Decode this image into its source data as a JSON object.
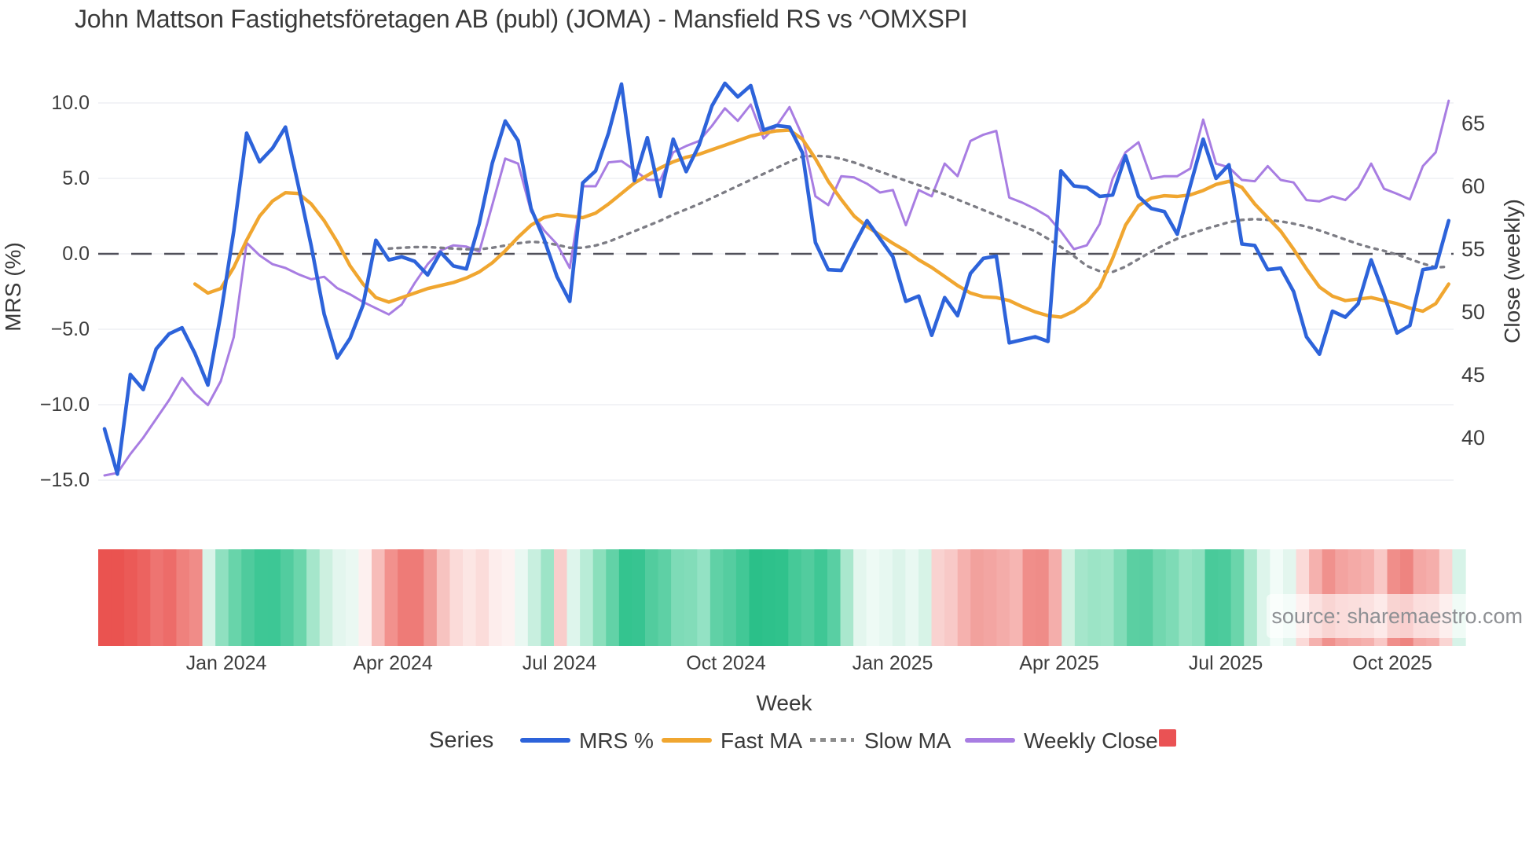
{
  "title": "John Mattson Fastighetsföretagen AB (publ) (JOMA) - Mansfield RS vs ^OMXSPI",
  "watermark": "source: sharemaestro.com",
  "colors": {
    "mrs_blue": "#2d63da",
    "fast_ma_orange": "#f0a630",
    "slow_ma_gray": "#7d7d85",
    "weekly_close_purple": "#a87de2",
    "legend_square_red": "#ea5254",
    "zero_line": "#50505a",
    "gridline": "#edeff4"
  },
  "axes": {
    "left": {
      "title": "MRS (%)",
      "ticks": [
        "10.0",
        "5.0",
        "0.0",
        "−5.0",
        "−10.0",
        "−15.0"
      ]
    },
    "right": {
      "title": "Close (weekly)",
      "ticks": [
        "65",
        "60",
        "55",
        "50",
        "45",
        "40"
      ]
    },
    "x": {
      "title": "Week",
      "ticks": [
        "Jan 2024",
        "Apr 2024",
        "Jul 2024",
        "Oct 2024",
        "Jan 2025",
        "Apr 2025",
        "Jul 2025",
        "Oct 2025"
      ]
    }
  },
  "legend": {
    "title": "Series",
    "items": [
      {
        "label": "MRS %",
        "color": "#2d63da",
        "style": "solid"
      },
      {
        "label": "Fast MA",
        "color": "#f0a630",
        "style": "solid"
      },
      {
        "label": "Slow MA",
        "color": "#8c8c8c",
        "style": "dotted"
      },
      {
        "label": "Weekly Close",
        "color": "#a87de2",
        "style": "solid"
      },
      {
        "label": "",
        "color": "#ea5254",
        "style": "square"
      }
    ]
  },
  "chart_data": {
    "type": "line",
    "title": "John Mattson Fastighetsföretagen AB (publ) (JOMA) - Mansfield RS vs ^OMXSPI",
    "xlabel": "Week",
    "x_tick_labels": [
      "Jan 2024",
      "Apr 2024",
      "Jul 2024",
      "Oct 2024",
      "Jan 2025",
      "Apr 2025",
      "Jul 2025",
      "Oct 2025"
    ],
    "n_weeks": 105,
    "grid": true,
    "legend_position": "bottom",
    "left_axis": {
      "title": "MRS (%)",
      "ylim": [
        -15,
        10
      ],
      "tick_values": [
        10,
        5,
        0,
        -5,
        -10,
        -15
      ],
      "zero_dashed_line": true
    },
    "right_axis": {
      "title": "Close (weekly)",
      "ylim": [
        40,
        65
      ],
      "tick_values": [
        65,
        60,
        55,
        50,
        45,
        40
      ]
    },
    "series": [
      {
        "name": "Weekly Close",
        "axis": "right",
        "color": "#a87de2",
        "width": 3,
        "dash": null,
        "values": [
          37.0,
          37.2,
          38.7,
          40.0,
          41.5,
          43.0,
          44.75,
          43.5,
          42.6,
          44.5,
          48.0,
          55.5,
          54.5,
          53.8,
          53.5,
          53.0,
          52.6,
          52.8,
          51.9,
          51.4,
          50.8,
          50.3,
          49.8,
          50.6,
          52.3,
          53.8,
          54.9,
          55.3,
          55.2,
          54.8,
          58.5,
          62.2,
          61.8,
          58.0,
          56.5,
          55.4,
          53.5,
          60.0,
          60.0,
          61.9,
          62.0,
          61.3,
          60.5,
          60.5,
          62.7,
          63.2,
          63.6,
          64.8,
          66.2,
          65.2,
          66.5,
          63.8,
          64.8,
          66.3,
          64.0,
          59.2,
          58.5,
          60.8,
          60.7,
          60.2,
          59.5,
          59.7,
          56.9,
          59.7,
          59.2,
          61.8,
          60.8,
          63.6,
          64.1,
          64.4,
          59.1,
          58.7,
          58.2,
          57.6,
          56.4,
          55.0,
          55.3,
          57.0,
          60.6,
          62.7,
          63.5,
          60.6,
          60.8,
          60.8,
          61.4,
          65.3,
          61.8,
          61.5,
          60.5,
          60.4,
          61.6,
          60.5,
          60.3,
          58.9,
          58.8,
          59.2,
          58.9,
          59.9,
          61.8,
          59.8,
          59.4,
          58.95,
          61.6,
          62.7,
          66.8
        ]
      },
      {
        "name": "Slow MA",
        "axis": "left",
        "color": "#7d7d85",
        "width": 3.4,
        "dash": "4 7",
        "values": [
          null,
          null,
          null,
          null,
          null,
          null,
          null,
          null,
          null,
          null,
          null,
          null,
          null,
          null,
          null,
          null,
          null,
          null,
          null,
          null,
          null,
          null,
          0.35,
          0.4,
          0.45,
          0.45,
          0.4,
          0.35,
          0.3,
          0.3,
          0.4,
          0.55,
          0.7,
          0.8,
          0.75,
          0.6,
          0.4,
          0.4,
          0.55,
          0.8,
          1.15,
          1.5,
          1.85,
          2.2,
          2.6,
          2.95,
          3.3,
          3.7,
          4.1,
          4.5,
          4.9,
          5.3,
          5.7,
          6.1,
          6.45,
          6.5,
          6.45,
          6.3,
          6.05,
          5.75,
          5.45,
          5.15,
          4.85,
          4.55,
          4.25,
          3.95,
          3.6,
          3.25,
          2.9,
          2.55,
          2.2,
          1.85,
          1.5,
          1.0,
          0.45,
          -0.15,
          -0.8,
          -1.15,
          -1.2,
          -0.85,
          -0.35,
          0.15,
          0.6,
          1.0,
          1.3,
          1.6,
          1.85,
          2.1,
          2.25,
          2.3,
          2.25,
          2.15,
          2.0,
          1.8,
          1.55,
          1.25,
          0.95,
          0.65,
          0.4,
          0.2,
          -0.05,
          -0.35,
          -0.65,
          -0.9,
          -0.85
        ]
      },
      {
        "name": "Fast MA",
        "axis": "left",
        "color": "#f0a630",
        "width": 4.4,
        "dash": null,
        "values": [
          null,
          null,
          null,
          null,
          null,
          null,
          null,
          -2.0,
          -2.6,
          -2.3,
          -0.9,
          0.9,
          2.5,
          3.5,
          4.05,
          4.0,
          3.3,
          2.2,
          0.8,
          -0.8,
          -2.0,
          -2.9,
          -3.2,
          -2.9,
          -2.6,
          -2.3,
          -2.1,
          -1.9,
          -1.6,
          -1.2,
          -0.6,
          0.2,
          1.1,
          1.9,
          2.4,
          2.6,
          2.5,
          2.4,
          2.7,
          3.3,
          4.0,
          4.7,
          5.2,
          5.7,
          6.1,
          6.4,
          6.6,
          6.9,
          7.2,
          7.5,
          7.8,
          8.0,
          8.15,
          8.2,
          7.6,
          6.3,
          4.8,
          3.6,
          2.5,
          1.8,
          1.25,
          0.7,
          0.2,
          -0.4,
          -0.9,
          -1.5,
          -2.1,
          -2.6,
          -2.85,
          -2.9,
          -3.1,
          -3.5,
          -3.85,
          -4.1,
          -4.2,
          -3.8,
          -3.2,
          -2.2,
          -0.3,
          1.9,
          3.2,
          3.7,
          3.85,
          3.8,
          3.9,
          4.2,
          4.6,
          4.8,
          4.4,
          3.3,
          2.4,
          1.5,
          0.3,
          -1.0,
          -2.2,
          -2.8,
          -3.1,
          -3.0,
          -2.9,
          -3.1,
          -3.3,
          -3.6,
          -3.8,
          -3.3,
          -2.0
        ]
      },
      {
        "name": "MRS %",
        "axis": "left",
        "color": "#2d63da",
        "width": 4.6,
        "dash": null,
        "values": [
          -11.6,
          -14.6,
          -8.0,
          -9.0,
          -6.3,
          -5.3,
          -4.9,
          -6.6,
          -8.7,
          -4.0,
          1.5,
          8.0,
          6.1,
          7.0,
          8.4,
          4.5,
          0.5,
          -4.0,
          -6.9,
          -5.6,
          -3.4,
          0.9,
          -0.4,
          -0.2,
          -0.5,
          -1.4,
          0.1,
          -0.8,
          -1.0,
          2.0,
          6.0,
          8.8,
          7.5,
          3.0,
          1.0,
          -1.5,
          -3.15,
          4.7,
          5.5,
          8.0,
          11.25,
          4.85,
          7.7,
          3.8,
          7.6,
          5.45,
          7.2,
          9.8,
          11.3,
          10.4,
          11.15,
          8.2,
          8.5,
          8.4,
          6.7,
          0.75,
          -1.05,
          -1.1,
          0.6,
          2.2,
          1.0,
          -0.2,
          -3.15,
          -2.8,
          -5.4,
          -2.9,
          -4.1,
          -1.3,
          -0.3,
          -0.15,
          -5.9,
          -5.7,
          -5.5,
          -5.8,
          5.5,
          4.5,
          4.4,
          3.8,
          3.9,
          6.5,
          3.8,
          3.0,
          2.8,
          1.3,
          4.5,
          7.6,
          5.0,
          5.9,
          0.65,
          0.55,
          -1.05,
          -0.95,
          -2.5,
          -5.5,
          -6.65,
          -3.8,
          -4.2,
          -3.3,
          -0.4,
          -2.7,
          -5.25,
          -4.75,
          -1.05,
          -0.9,
          2.2
        ]
      }
    ],
    "heat_strip": {
      "colors": [
        "#ea5350",
        "#ea5350",
        "#eb5a57",
        "#ec6360",
        "#ee7471",
        "#ed6c69",
        "#ef817d",
        "#f08c88",
        "#d8f3e8",
        "#8fe0c0",
        "#68d4aa",
        "#4fcb9d",
        "#3ec795",
        "#3dc795",
        "#52cc9f",
        "#6bd5ab",
        "#a5e6cb",
        "#cdf0e0",
        "#e3f6ee",
        "#eaf8f2",
        "#fdf0ef",
        "#f7bcb9",
        "#f2918d",
        "#ee7b77",
        "#ee7b77",
        "#f19a96",
        "#f7c3c0",
        "#fbdbd9",
        "#fce6e4",
        "#fbdcda",
        "#fdedec",
        "#fdf2f1",
        "#eaf8f2",
        "#c8efdf",
        "#9de4c7",
        "#f9cdcb",
        "#def5ec",
        "#b9ecd7",
        "#8bdfbc",
        "#62d2a7",
        "#34c48f",
        "#37c491",
        "#52cc9e",
        "#5ed0a5",
        "#7edbb7",
        "#82dcb9",
        "#93e2c4",
        "#60d1a6",
        "#55cda0",
        "#42c896",
        "#2bc089",
        "#2ec18b",
        "#30c28c",
        "#46c998",
        "#52cc9e",
        "#3fc795",
        "#59cfa3",
        "#a9e7cd",
        "#e3f6ee",
        "#eefaf5",
        "#e7f8f1",
        "#dcf4ea",
        "#e9f8f2",
        "#d7f3e7",
        "#f9d2d0",
        "#f8c9c7",
        "#f5b1ae",
        "#f2a19d",
        "#f3a5a2",
        "#f4aca9",
        "#f6b5b2",
        "#f08e8a",
        "#ef8c88",
        "#f4aeab",
        "#cff1e1",
        "#a5e6cb",
        "#9ce4c6",
        "#a0e5c8",
        "#82dcb8",
        "#5bcfa2",
        "#58cea1",
        "#72d7af",
        "#7edbb6",
        "#98e3c4",
        "#8ee0bf",
        "#49ca9a",
        "#4ccb9c",
        "#6bd5ab",
        "#abe8ce",
        "#ddf5eb",
        "#f2fcf8",
        "#e3f6ee",
        "#fbdad8",
        "#f5b1ae",
        "#f0918d",
        "#f3a3a0",
        "#f4aaa7",
        "#f5b0ad",
        "#f9c8c6",
        "#f08e8a",
        "#ee8480",
        "#f4a8a5",
        "#f5aeab",
        "#fad5d3",
        "#d7f3e8"
      ]
    }
  }
}
